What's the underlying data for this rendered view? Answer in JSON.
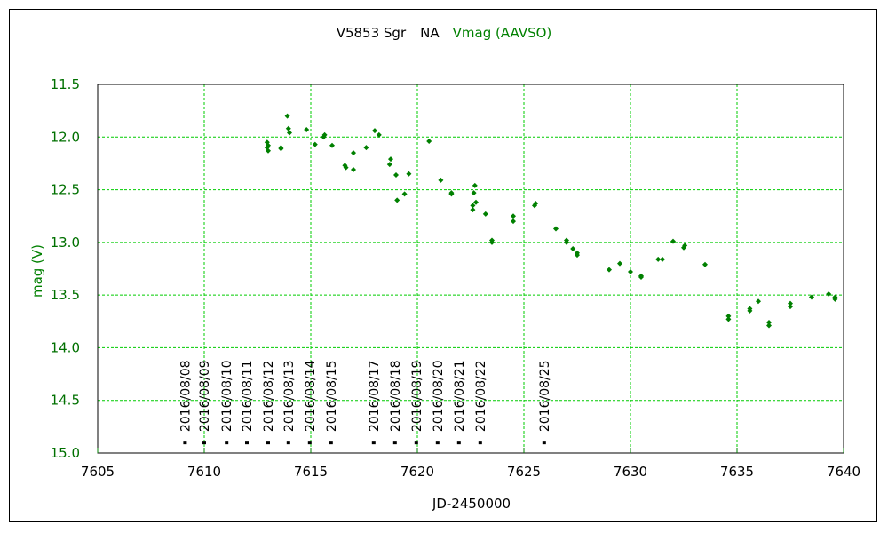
{
  "chart_data": {
    "type": "scatter",
    "title_parts": [
      {
        "text": "V5853 Sgr",
        "color": "#000000"
      },
      {
        "text": "NA",
        "color": "#000000"
      },
      {
        "text": "Vmag (AAVSO)",
        "color": "#008000"
      }
    ],
    "xlabel": "JD-2450000",
    "ylabel": "mag (V)",
    "xlim": [
      7605,
      7640
    ],
    "ylim": [
      15.0,
      11.5
    ],
    "y_inverted": true,
    "grid": true,
    "xticks": [
      7605,
      7610,
      7615,
      7620,
      7625,
      7630,
      7635,
      7640
    ],
    "yticks": [
      11.5,
      12.0,
      12.5,
      13.0,
      13.5,
      14.0,
      14.5,
      15.0
    ],
    "ytick_labels": [
      "11.5",
      "12.0",
      "12.5",
      "13.0",
      "13.5",
      "14.0",
      "14.5",
      "15.0"
    ],
    "colors": {
      "points": "#008000",
      "grid": "#00cc00",
      "ylabels": "#007000",
      "xtick_marks": "#008000"
    },
    "series": [
      {
        "points": [
          [
            7612.95,
            12.05
          ],
          [
            7612.95,
            12.1
          ],
          [
            7613.0,
            12.13
          ],
          [
            7613.0,
            12.08
          ],
          [
            7613.6,
            12.1
          ],
          [
            7613.6,
            12.11
          ],
          [
            7613.9,
            11.8
          ],
          [
            7613.95,
            11.92
          ],
          [
            7614.0,
            11.96
          ],
          [
            7614.8,
            11.93
          ],
          [
            7615.2,
            12.07
          ],
          [
            7615.6,
            12.0
          ],
          [
            7615.65,
            11.98
          ],
          [
            7616.0,
            12.08
          ],
          [
            7616.6,
            12.27
          ],
          [
            7616.65,
            12.29
          ],
          [
            7617.0,
            12.31
          ],
          [
            7617.0,
            12.15
          ],
          [
            7617.6,
            12.1
          ],
          [
            7618.0,
            11.94
          ],
          [
            7618.2,
            11.98
          ],
          [
            7618.7,
            12.26
          ],
          [
            7618.75,
            12.21
          ],
          [
            7619.0,
            12.36
          ],
          [
            7619.05,
            12.6
          ],
          [
            7619.4,
            12.54
          ],
          [
            7619.6,
            12.35
          ],
          [
            7620.55,
            12.04
          ],
          [
            7621.1,
            12.41
          ],
          [
            7621.6,
            12.54
          ],
          [
            7621.6,
            12.53
          ],
          [
            7622.6,
            12.65
          ],
          [
            7622.6,
            12.69
          ],
          [
            7622.65,
            12.53
          ],
          [
            7622.7,
            12.46
          ],
          [
            7622.75,
            12.62
          ],
          [
            7623.2,
            12.73
          ],
          [
            7623.5,
            12.98
          ],
          [
            7623.5,
            13.0
          ],
          [
            7624.5,
            12.8
          ],
          [
            7624.5,
            12.75
          ],
          [
            7625.5,
            12.65
          ],
          [
            7625.55,
            12.63
          ],
          [
            7626.5,
            12.87
          ],
          [
            7627.0,
            13.0
          ],
          [
            7627.0,
            12.98
          ],
          [
            7627.3,
            13.06
          ],
          [
            7627.5,
            13.1
          ],
          [
            7627.5,
            13.12
          ],
          [
            7629.0,
            13.26
          ],
          [
            7629.5,
            13.2
          ],
          [
            7630.0,
            13.28
          ],
          [
            7630.5,
            13.33
          ],
          [
            7630.5,
            13.32
          ],
          [
            7631.3,
            13.16
          ],
          [
            7631.5,
            13.16
          ],
          [
            7632.0,
            12.99
          ],
          [
            7632.5,
            13.05
          ],
          [
            7632.55,
            13.03
          ],
          [
            7633.5,
            13.21
          ],
          [
            7634.6,
            13.7
          ],
          [
            7634.6,
            13.73
          ],
          [
            7635.6,
            13.65
          ],
          [
            7635.6,
            13.63
          ],
          [
            7636.0,
            13.56
          ],
          [
            7636.5,
            13.76
          ],
          [
            7636.5,
            13.79
          ],
          [
            7637.5,
            13.58
          ],
          [
            7637.5,
            13.61
          ],
          [
            7638.5,
            13.52
          ],
          [
            7639.3,
            13.49
          ],
          [
            7639.6,
            13.52
          ],
          [
            7639.6,
            13.54
          ]
        ]
      }
    ],
    "date_markers": [
      {
        "x": 7609.1,
        "label": "2016/08/08"
      },
      {
        "x": 7610.0,
        "label": "2016/08/09"
      },
      {
        "x": 7611.05,
        "label": "2016/08/10"
      },
      {
        "x": 7612.0,
        "label": "2016/08/11"
      },
      {
        "x": 7613.0,
        "label": "2016/08/12"
      },
      {
        "x": 7613.95,
        "label": "2016/08/13"
      },
      {
        "x": 7614.95,
        "label": "2016/08/14"
      },
      {
        "x": 7615.95,
        "label": "2016/08/15"
      },
      {
        "x": 7617.95,
        "label": "2016/08/17"
      },
      {
        "x": 7618.95,
        "label": "2016/08/18"
      },
      {
        "x": 7619.95,
        "label": "2016/08/19"
      },
      {
        "x": 7620.95,
        "label": "2016/08/20"
      },
      {
        "x": 7621.95,
        "label": "2016/08/21"
      },
      {
        "x": 7622.95,
        "label": "2016/08/22"
      },
      {
        "x": 7625.95,
        "label": "2016/08/25"
      }
    ],
    "date_marker_mag": 14.9
  }
}
